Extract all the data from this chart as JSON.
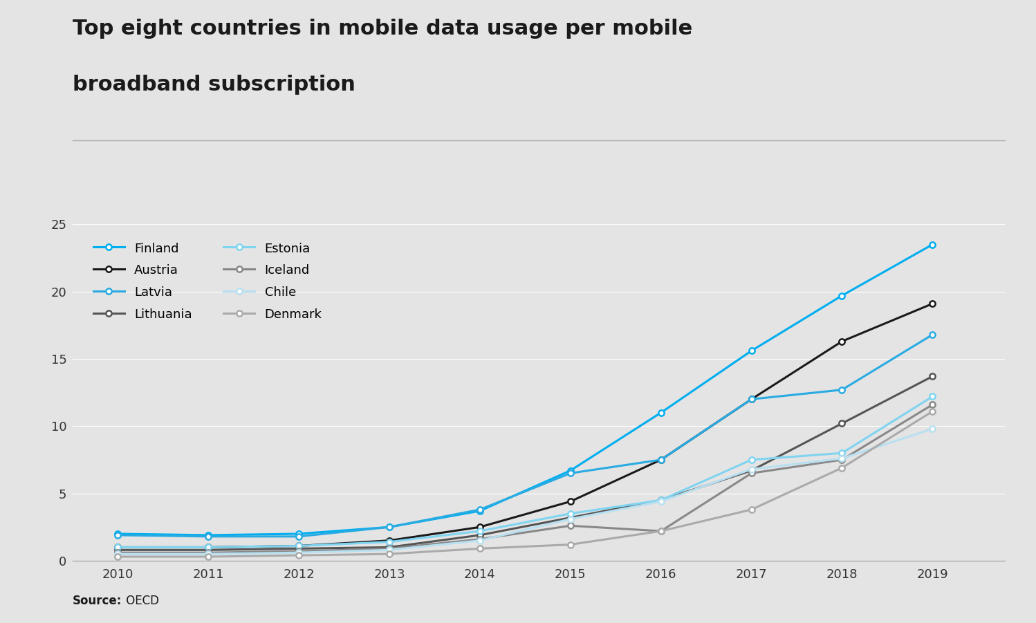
{
  "title_line1": "Top eight countries in mobile data usage per mobile",
  "title_line2": "broadband subscription",
  "source_bold": "Source:",
  "source_normal": " OECD",
  "years": [
    2010,
    2011,
    2012,
    2013,
    2014,
    2015,
    2016,
    2017,
    2018,
    2019
  ],
  "series_data": {
    "Finland": [
      2.0,
      1.9,
      2.0,
      2.5,
      3.7,
      6.7,
      11.0,
      15.6,
      19.7,
      23.5
    ],
    "Austria": [
      1.0,
      1.0,
      1.1,
      1.5,
      2.5,
      4.4,
      7.5,
      12.0,
      16.3,
      19.1
    ],
    "Latvia": [
      1.9,
      1.8,
      1.8,
      2.5,
      3.8,
      6.5,
      7.5,
      12.0,
      12.7,
      16.8
    ],
    "Lithuania": [
      0.8,
      0.8,
      0.9,
      1.0,
      1.9,
      3.2,
      4.5,
      6.7,
      10.2,
      13.7
    ],
    "Estonia": [
      1.0,
      1.0,
      1.1,
      1.4,
      2.2,
      3.5,
      4.5,
      7.5,
      8.0,
      12.2
    ],
    "Iceland": [
      0.6,
      0.6,
      0.7,
      0.9,
      1.6,
      2.6,
      2.2,
      6.5,
      7.5,
      11.6
    ],
    "Chile": [
      0.5,
      0.5,
      0.6,
      0.8,
      1.5,
      3.1,
      4.4,
      6.8,
      7.6,
      9.8
    ],
    "Denmark": [
      0.3,
      0.3,
      0.4,
      0.5,
      0.9,
      1.2,
      2.2,
      3.8,
      6.9,
      11.1
    ]
  },
  "colors": {
    "Finland": "#00AEEF",
    "Austria": "#1A1A1A",
    "Latvia": "#29ABE2",
    "Lithuania": "#555555",
    "Estonia": "#80D4F0",
    "Iceland": "#888888",
    "Chile": "#B8E0F0",
    "Denmark": "#AAAAAA"
  },
  "country_order": [
    "Finland",
    "Austria",
    "Latvia",
    "Lithuania",
    "Estonia",
    "Iceland",
    "Chile",
    "Denmark"
  ],
  "legend_left": [
    "Finland",
    "Austria",
    "Latvia",
    "Lithuania"
  ],
  "legend_right": [
    "Estonia",
    "Iceland",
    "Chile",
    "Denmark"
  ],
  "ylim": [
    0,
    25
  ],
  "yticks": [
    0,
    5,
    10,
    15,
    20,
    25
  ],
  "background_color": "#E4E4E4",
  "grid_color": "#FFFFFF",
  "title_fontsize": 22,
  "tick_fontsize": 13,
  "legend_fontsize": 13,
  "source_fontsize": 12,
  "linewidth": 2.2,
  "markersize": 6
}
